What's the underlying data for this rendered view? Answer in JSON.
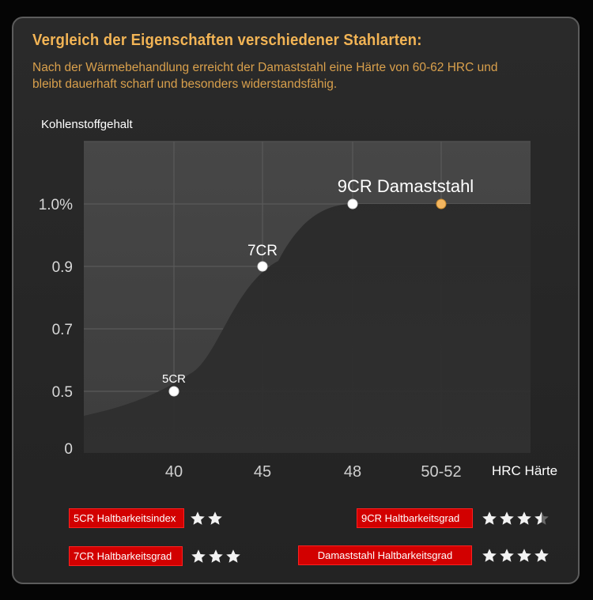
{
  "header": {
    "title": "Vergleich der Eigenschaften verschiedener Stahlarten:",
    "description": "Nach der Wärmebehandlung erreicht der Damaststahl eine Härte von 60-62 HRC und bleibt dauerhaft scharf und besonders widerstandsfähig."
  },
  "chart_data": {
    "type": "area",
    "xlabel": "HRC Härte",
    "ylabel": "Kohlenstoffgehalt",
    "categories": [
      "40",
      "45",
      "48",
      "50-52"
    ],
    "y_ticks": [
      "0",
      "0.5",
      "0.7",
      "0.9",
      "1.0%"
    ],
    "grid": true,
    "points": [
      {
        "label": "5CR",
        "x": "40",
        "y": 0.5
      },
      {
        "label": "7CR",
        "x": "45",
        "y": 0.9
      },
      {
        "label": "9CR Damaststahl",
        "x": "48",
        "y": 1.0
      },
      {
        "label": "",
        "x": "50-52",
        "y": 1.0
      }
    ],
    "highlight_color": "#f3b660",
    "point_color": "#ffffff"
  },
  "ratings": [
    {
      "label": "5CR Haltbarkeitsindex",
      "stars": 2
    },
    {
      "label": "9CR Haltbarkeitsgrad",
      "stars": 3.5
    },
    {
      "label": "7CR Haltbarkeitsgrad",
      "stars": 3
    },
    {
      "label": "Damaststahl Haltbarkeitsgrad",
      "stars": 4
    }
  ]
}
